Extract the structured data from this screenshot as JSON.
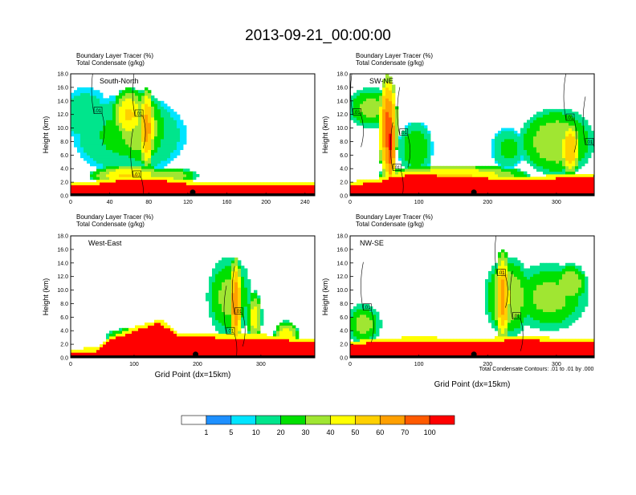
{
  "title": "2013-09-21_00:00:00",
  "colors": {
    "palette": [
      "#ffffff",
      "#1e90ff",
      "#00e5ff",
      "#00e58c",
      "#00e000",
      "#a0e632",
      "#ffff00",
      "#ffd000",
      "#ffa000",
      "#ff5a00",
      "#ff0000"
    ],
    "contour": "#000000",
    "marker": "#000000"
  },
  "colorbar": {
    "labels": [
      "1",
      "5",
      "10",
      "20",
      "30",
      "40",
      "50",
      "60",
      "70",
      "100"
    ]
  },
  "contour_note": "Total Condensate Contours: .01 to .01 by .000",
  "chart_data": [
    {
      "type": "heatmap",
      "panel_label": "South-North",
      "subtitle_lines": [
        "Boundary Layer Tracer   (%)",
        "Total Condensate   (g/kg)"
      ],
      "xlabel": "",
      "ylabel": "Height (km)",
      "xlim": [
        0,
        250
      ],
      "ylim": [
        0,
        18
      ],
      "xticks": [
        "0",
        "40",
        "80",
        "120",
        "160",
        "200",
        "240"
      ],
      "yticks": [
        "0.0",
        "2.0",
        "4.0",
        "6.0",
        "8.0",
        "10.0",
        "12.0",
        "14.0",
        "16.0",
        "18.0"
      ],
      "contour_labels": [
        {
          "text": ".01",
          "x": 28,
          "y": 12.6
        },
        {
          "text": ".01",
          "x": 70,
          "y": 12.2
        },
        {
          "text": ".01",
          "x": 68,
          "y": 3.2
        }
      ],
      "marker_x": 125,
      "bl_profile": [
        [
          0,
          1.6
        ],
        [
          25,
          1.7
        ],
        [
          50,
          2.3
        ],
        [
          70,
          2.6
        ],
        [
          90,
          2.4
        ],
        [
          110,
          2.0
        ],
        [
          130,
          1.6
        ],
        [
          160,
          1.5
        ],
        [
          200,
          1.5
        ],
        [
          250,
          1.5
        ]
      ],
      "blobs": [
        {
          "cx": 60,
          "cy": 9,
          "rx": 58,
          "ry": 6,
          "v": 0.35
        },
        {
          "cx": 15,
          "cy": 12,
          "rx": 25,
          "ry": 4,
          "v": 0.3
        },
        {
          "cx": 70,
          "cy": 10,
          "rx": 30,
          "ry": 5.5,
          "v": 0.5
        },
        {
          "cx": 60,
          "cy": 12,
          "rx": 18,
          "ry": 4,
          "v": 0.62
        },
        {
          "cx": 78,
          "cy": 10,
          "rx": 8,
          "ry": 6,
          "v": 0.75
        },
        {
          "cx": 60,
          "cy": 3,
          "rx": 40,
          "ry": 1.6,
          "v": 0.62
        },
        {
          "cx": 100,
          "cy": 3,
          "rx": 30,
          "ry": 1.2,
          "v": 0.5
        }
      ]
    },
    {
      "type": "heatmap",
      "panel_label": "SW-NE",
      "subtitle_lines": [
        "Boundary Layer Tracer   (%)",
        "Total Condensate   (g/kg)"
      ],
      "xlabel": "",
      "ylabel": "Height (km)",
      "xlim": [
        0,
        355
      ],
      "ylim": [
        0,
        18
      ],
      "xticks": [
        "0",
        "100",
        "200",
        "300"
      ],
      "yticks": [
        "0.0",
        "2.0",
        "4.0",
        "6.0",
        "8.0",
        "10.0",
        "12.0",
        "14.0",
        "16.0",
        "18.0"
      ],
      "contour_labels": [
        {
          "text": ".01",
          "x": 10,
          "y": 12.4
        },
        {
          "text": ".01",
          "x": 78,
          "y": 9.4
        },
        {
          "text": ".01",
          "x": 68,
          "y": 4.2
        },
        {
          "text": ".01",
          "x": 320,
          "y": 11.6
        },
        {
          "text": ".01",
          "x": 348,
          "y": 8.0
        }
      ],
      "marker_x": 180,
      "bl_profile": [
        [
          0,
          1.6
        ],
        [
          40,
          2.0
        ],
        [
          60,
          2.8
        ],
        [
          100,
          3.2
        ],
        [
          150,
          2.8
        ],
        [
          200,
          2.6
        ],
        [
          250,
          2.3
        ],
        [
          300,
          2.6
        ],
        [
          355,
          2.6
        ]
      ],
      "blobs": [
        {
          "cx": 30,
          "cy": 13,
          "rx": 35,
          "ry": 3,
          "v": 0.45
        },
        {
          "cx": 55,
          "cy": 10,
          "rx": 14,
          "ry": 8,
          "v": 0.85
        },
        {
          "cx": 58,
          "cy": 8,
          "rx": 9,
          "ry": 7,
          "v": 0.92
        },
        {
          "cx": 95,
          "cy": 7,
          "rx": 25,
          "ry": 4,
          "v": 0.4
        },
        {
          "cx": 300,
          "cy": 8,
          "rx": 55,
          "ry": 5,
          "v": 0.5
        },
        {
          "cx": 320,
          "cy": 7,
          "rx": 15,
          "ry": 4,
          "v": 0.7
        },
        {
          "cx": 230,
          "cy": 7,
          "rx": 25,
          "ry": 3,
          "v": 0.35
        },
        {
          "cx": 150,
          "cy": 3,
          "rx": 110,
          "ry": 1.6,
          "v": 0.62
        }
      ]
    },
    {
      "type": "heatmap",
      "panel_label": "West-East",
      "subtitle_lines": [
        "Boundary Layer Tracer   (%)",
        "Total Condensate   (g/kg)"
      ],
      "xlabel": "Grid Point (dx=15km)",
      "ylabel": "Height (km)",
      "xlim": [
        0,
        385
      ],
      "ylim": [
        0,
        18
      ],
      "xticks": [
        "0",
        "100",
        "200",
        "300"
      ],
      "yticks": [
        "0.0",
        "2.0",
        "4.0",
        "6.0",
        "8.0",
        "10.0",
        "12.0",
        "14.0",
        "16.0",
        "18.0"
      ],
      "contour_labels": [
        {
          "text": ".01",
          "x": 265,
          "y": 6.9
        },
        {
          "text": ".01",
          "x": 252,
          "y": 4.0
        }
      ],
      "marker_x": 197,
      "bl_profile": [
        [
          0,
          0.8
        ],
        [
          40,
          1.0
        ],
        [
          60,
          2.5
        ],
        [
          100,
          4.0
        ],
        [
          140,
          5.2
        ],
        [
          170,
          3.2
        ],
        [
          230,
          3.0
        ],
        [
          300,
          3.0
        ],
        [
          385,
          2.2
        ]
      ],
      "blobs": [
        {
          "cx": 110,
          "cy": 3,
          "rx": 55,
          "ry": 1.6,
          "v": 0.55
        },
        {
          "cx": 250,
          "cy": 9,
          "rx": 35,
          "ry": 6,
          "v": 0.45
        },
        {
          "cx": 260,
          "cy": 8,
          "rx": 10,
          "ry": 7,
          "v": 0.8
        },
        {
          "cx": 290,
          "cy": 6,
          "rx": 12,
          "ry": 4,
          "v": 0.55
        },
        {
          "cx": 340,
          "cy": 3,
          "rx": 20,
          "ry": 2.5,
          "v": 0.6
        }
      ]
    },
    {
      "type": "heatmap",
      "panel_label": "NW-SE",
      "subtitle_lines": [
        "Boundary Layer Tracer   (%)",
        "Total Condensate   (g/kg)"
      ],
      "xlabel": "Grid Point (dx=15km)",
      "ylabel": "Height (km)",
      "xlim": [
        0,
        355
      ],
      "ylim": [
        0,
        18
      ],
      "xticks": [
        "0",
        "100",
        "200",
        "300"
      ],
      "yticks": [
        "0.0",
        "2.0",
        "4.0",
        "6.0",
        "8.0",
        "10.0",
        "12.0",
        "14.0",
        "16.0",
        "18.0"
      ],
      "contour_labels": [
        {
          "text": ".01",
          "x": 25,
          "y": 7.5
        },
        {
          "text": ".01",
          "x": 220,
          "y": 12.6
        },
        {
          "text": ".01",
          "x": 242,
          "y": 6.2
        }
      ],
      "marker_x": 180,
      "bl_profile": [
        [
          0,
          2.0
        ],
        [
          50,
          2.4
        ],
        [
          100,
          2.6
        ],
        [
          150,
          2.4
        ],
        [
          200,
          2.4
        ],
        [
          250,
          2.8
        ],
        [
          300,
          2.4
        ],
        [
          355,
          2.4
        ]
      ],
      "blobs": [
        {
          "cx": 20,
          "cy": 5,
          "rx": 25,
          "ry": 3,
          "v": 0.45
        },
        {
          "cx": 230,
          "cy": 9,
          "rx": 35,
          "ry": 6,
          "v": 0.5
        },
        {
          "cx": 222,
          "cy": 9,
          "rx": 12,
          "ry": 7,
          "v": 0.75
        },
        {
          "cx": 290,
          "cy": 9,
          "rx": 55,
          "ry": 5,
          "v": 0.45
        },
        {
          "cx": 320,
          "cy": 11,
          "rx": 25,
          "ry": 3,
          "v": 0.5
        }
      ]
    }
  ]
}
